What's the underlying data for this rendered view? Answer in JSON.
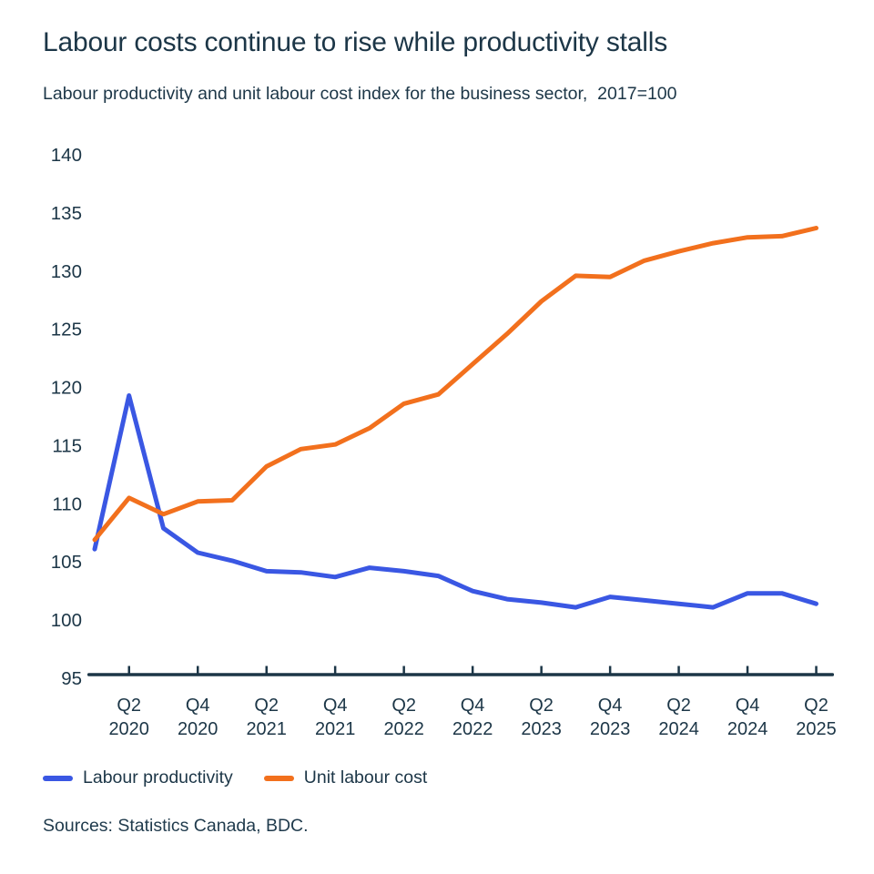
{
  "chart_data": {
    "type": "line",
    "title": "Labour costs continue to rise while productivity stalls",
    "subtitle": "Labour productivity and unit labour cost index for the business sector,  2017=100",
    "index_note": "2017=100",
    "categories": [
      "Q1 2020",
      "Q2 2020",
      "Q3 2020",
      "Q4 2020",
      "Q1 2021",
      "Q2 2021",
      "Q3 2021",
      "Q4 2021",
      "Q1 2022",
      "Q2 2022",
      "Q3 2022",
      "Q4 2022",
      "Q1 2023",
      "Q2 2023",
      "Q3 2023",
      "Q4 2023",
      "Q1 2024",
      "Q2 2024",
      "Q3 2024",
      "Q4 2024",
      "Q1 2025",
      "Q2 2025"
    ],
    "series": [
      {
        "name": "Labour productivity",
        "color": "#3a57e3",
        "values": [
          106.1,
          119.3,
          107.9,
          105.8,
          105.1,
          104.2,
          104.1,
          103.7,
          104.5,
          104.2,
          103.8,
          102.5,
          101.8,
          101.5,
          101.1,
          102.0,
          101.7,
          101.4,
          101.1,
          102.3,
          102.3,
          101.4
        ]
      },
      {
        "name": "Unit labour cost",
        "color": "#f2701d",
        "values": [
          106.9,
          110.5,
          109.1,
          110.2,
          110.3,
          113.2,
          114.7,
          115.1,
          116.5,
          118.6,
          119.4,
          122.0,
          124.6,
          127.4,
          129.6,
          129.5,
          130.9,
          131.7,
          132.4,
          132.9,
          133.0,
          133.7
        ]
      }
    ],
    "ylim": [
      95,
      140
    ],
    "yticks": [
      140,
      135,
      130,
      125,
      120,
      115,
      110,
      105,
      100,
      95
    ],
    "xticks": [
      {
        "quarter": "Q2",
        "year": "2020",
        "category_index": 1
      },
      {
        "quarter": "Q4",
        "year": "2020",
        "category_index": 3
      },
      {
        "quarter": "Q2",
        "year": "2021",
        "category_index": 5
      },
      {
        "quarter": "Q4",
        "year": "2021",
        "category_index": 7
      },
      {
        "quarter": "Q2",
        "year": "2022",
        "category_index": 9
      },
      {
        "quarter": "Q4",
        "year": "2022",
        "category_index": 11
      },
      {
        "quarter": "Q2",
        "year": "2023",
        "category_index": 13
      },
      {
        "quarter": "Q4",
        "year": "2023",
        "category_index": 15
      },
      {
        "quarter": "Q2",
        "year": "2024",
        "category_index": 17
      },
      {
        "quarter": "Q4",
        "year": "2024",
        "category_index": 19
      },
      {
        "quarter": "Q2",
        "year": "2025",
        "category_index": 21
      }
    ],
    "grid": false,
    "legend_position": "bottom",
    "xlabel": "",
    "ylabel": ""
  },
  "footer": {
    "sources": "Sources: Statistics Canada, BDC."
  },
  "style": {
    "text_color": "#1c3647",
    "axis_color": "#1c3647",
    "background": "#ffffff"
  }
}
